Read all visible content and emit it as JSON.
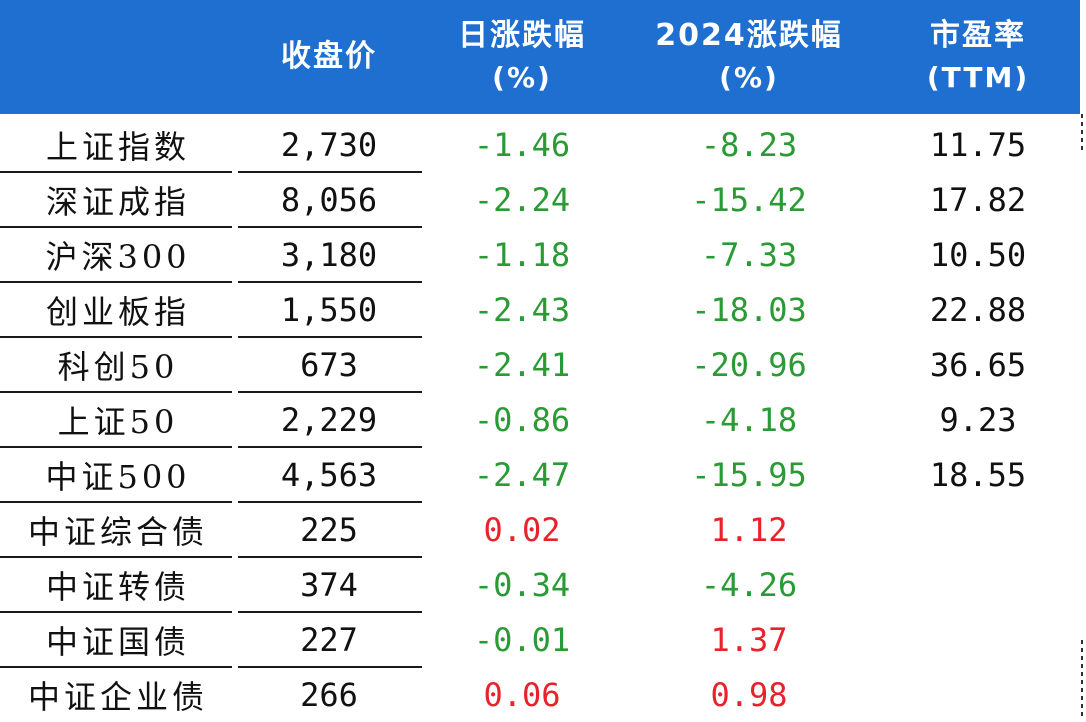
{
  "chart_data": {
    "type": "table",
    "columns": [
      {
        "key": "name",
        "label": ""
      },
      {
        "key": "close",
        "label": "收盘价"
      },
      {
        "key": "daily_change",
        "label": "日涨跌幅",
        "sublabel": "(%)"
      },
      {
        "key": "ytd_change",
        "label": "2024涨跌幅",
        "sublabel": "(%)"
      },
      {
        "key": "pe",
        "label": "市盈率",
        "sublabel": "(TTM)"
      }
    ],
    "rows": [
      {
        "name": "上证指数",
        "close": "2,730",
        "daily_change": "-1.46",
        "ytd_change": "-8.23",
        "pe": "11.75"
      },
      {
        "name": "深证成指",
        "close": "8,056",
        "daily_change": "-2.24",
        "ytd_change": "-15.42",
        "pe": "17.82"
      },
      {
        "name": "沪深300",
        "close": "3,180",
        "daily_change": "-1.18",
        "ytd_change": "-7.33",
        "pe": "10.50"
      },
      {
        "name": "创业板指",
        "close": "1,550",
        "daily_change": "-2.43",
        "ytd_change": "-18.03",
        "pe": "22.88"
      },
      {
        "name": "科创50",
        "close": "673",
        "daily_change": "-2.41",
        "ytd_change": "-20.96",
        "pe": "36.65"
      },
      {
        "name": "上证50",
        "close": "2,229",
        "daily_change": "-0.86",
        "ytd_change": "-4.18",
        "pe": "9.23"
      },
      {
        "name": "中证500",
        "close": "4,563",
        "daily_change": "-2.47",
        "ytd_change": "-15.95",
        "pe": "18.55"
      },
      {
        "name": "中证综合债",
        "close": "225",
        "daily_change": "0.02",
        "ytd_change": "1.12",
        "pe": ""
      },
      {
        "name": "中证转债",
        "close": "374",
        "daily_change": "-0.34",
        "ytd_change": "-4.26",
        "pe": ""
      },
      {
        "name": "中证国债",
        "close": "227",
        "daily_change": "-0.01",
        "ytd_change": "1.37",
        "pe": ""
      },
      {
        "name": "中证企业债",
        "close": "266",
        "daily_change": "0.06",
        "ytd_change": "0.98",
        "pe": ""
      }
    ],
    "colors": {
      "header_bg": "#1f6fd1",
      "header_text": "#ffffff",
      "positive": "#e8222b",
      "negative": "#2a9a34",
      "neutral": "#111111"
    }
  }
}
